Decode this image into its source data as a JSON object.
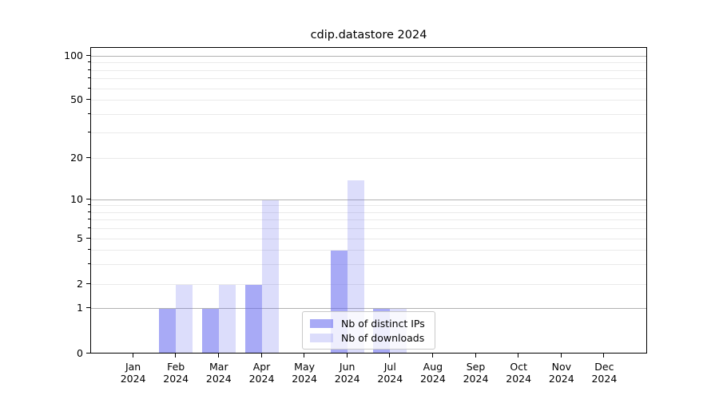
{
  "chart_data": {
    "type": "bar",
    "title": "cdip.datastore 2024",
    "categories": [
      "Jan",
      "Feb",
      "Mar",
      "Apr",
      "May",
      "Jun",
      "Jul",
      "Aug",
      "Sep",
      "Oct",
      "Nov",
      "Dec"
    ],
    "year_label": "2024",
    "series": [
      {
        "name": "Nb of distinct IPs",
        "color": "rgba(96,101,238,0.55)",
        "values": [
          0,
          1,
          1,
          2,
          0,
          4,
          1,
          0,
          0,
          0,
          0,
          0
        ]
      },
      {
        "name": "Nb of downloads",
        "color": "rgba(96,101,238,0.22)",
        "values": [
          0,
          2,
          2,
          10,
          0,
          14,
          1,
          0,
          0,
          0,
          0,
          0
        ]
      }
    ],
    "y_axis": {
      "scale": "symlog",
      "tick_labels": [
        "0",
        "1",
        "2",
        "5",
        "10",
        "20",
        "50",
        "100"
      ],
      "tick_values": [
        0,
        1,
        2,
        5,
        10,
        20,
        50,
        100
      ],
      "ylim": [
        0,
        115
      ]
    },
    "x_axis": {
      "tick_label_format": "Month over 2024"
    },
    "legend_position": "lower center",
    "grid": true,
    "colors": {
      "major_grid": "#b2b2b2",
      "minor_grid": "#eaeaea",
      "axis": "#000000",
      "background": "#ffffff"
    }
  }
}
